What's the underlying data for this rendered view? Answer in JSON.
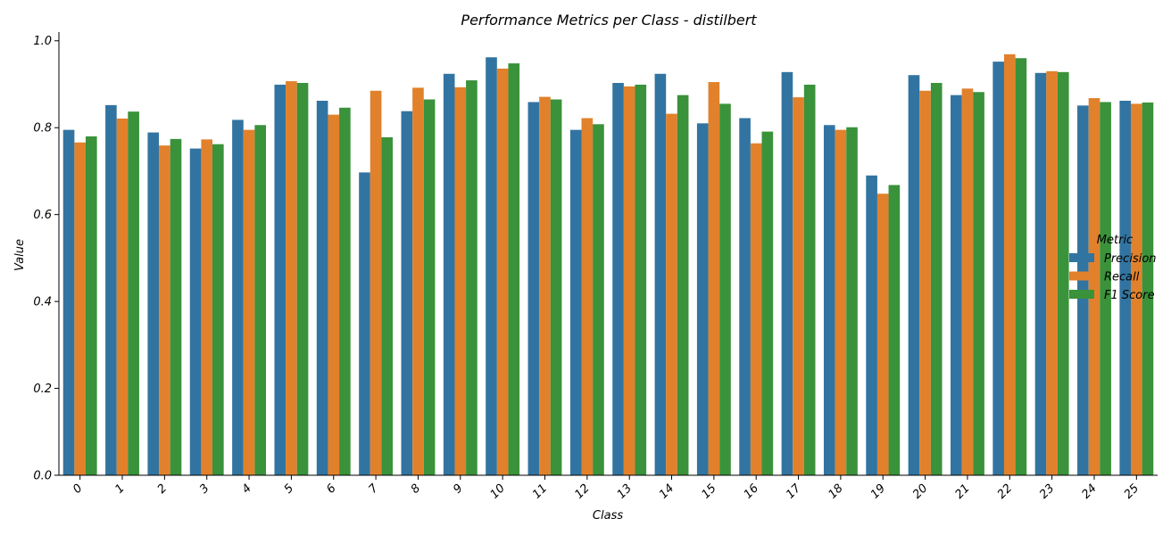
{
  "chart_data": {
    "type": "bar",
    "title": "Performance Metrics per Class - distilbert",
    "xlabel": "Class",
    "ylabel": "Value",
    "ylim": [
      0,
      1.02
    ],
    "yticks": [
      "0.0",
      "0.2",
      "0.4",
      "0.6",
      "0.8",
      "1.0"
    ],
    "grid": false,
    "legend": {
      "title": "Metric",
      "placement": "right"
    },
    "categories": [
      "0",
      "1",
      "2",
      "3",
      "4",
      "5",
      "6",
      "7",
      "8",
      "9",
      "10",
      "11",
      "12",
      "13",
      "14",
      "15",
      "16",
      "17",
      "18",
      "19",
      "20",
      "21",
      "22",
      "23",
      "24",
      "25"
    ],
    "series": [
      {
        "name": "Precision",
        "color": "#3274a1",
        "values": [
          0.795,
          0.852,
          0.789,
          0.752,
          0.818,
          0.899,
          0.862,
          0.697,
          0.838,
          0.924,
          0.962,
          0.859,
          0.795,
          0.903,
          0.924,
          0.81,
          0.822,
          0.928,
          0.806,
          0.69,
          0.921,
          0.875,
          0.952,
          0.926,
          0.851,
          0.862
        ]
      },
      {
        "name": "Recall",
        "color": "#e1812c",
        "values": [
          0.766,
          0.821,
          0.759,
          0.773,
          0.795,
          0.907,
          0.83,
          0.885,
          0.892,
          0.893,
          0.936,
          0.871,
          0.822,
          0.895,
          0.832,
          0.905,
          0.764,
          0.87,
          0.795,
          0.648,
          0.885,
          0.89,
          0.969,
          0.93,
          0.868,
          0.855
        ]
      },
      {
        "name": "F1 Score",
        "color": "#3a923a",
        "values": [
          0.78,
          0.837,
          0.774,
          0.762,
          0.806,
          0.903,
          0.846,
          0.778,
          0.865,
          0.909,
          0.948,
          0.865,
          0.808,
          0.899,
          0.875,
          0.855,
          0.791,
          0.899,
          0.801,
          0.668,
          0.903,
          0.882,
          0.96,
          0.928,
          0.859,
          0.858
        ]
      }
    ]
  }
}
